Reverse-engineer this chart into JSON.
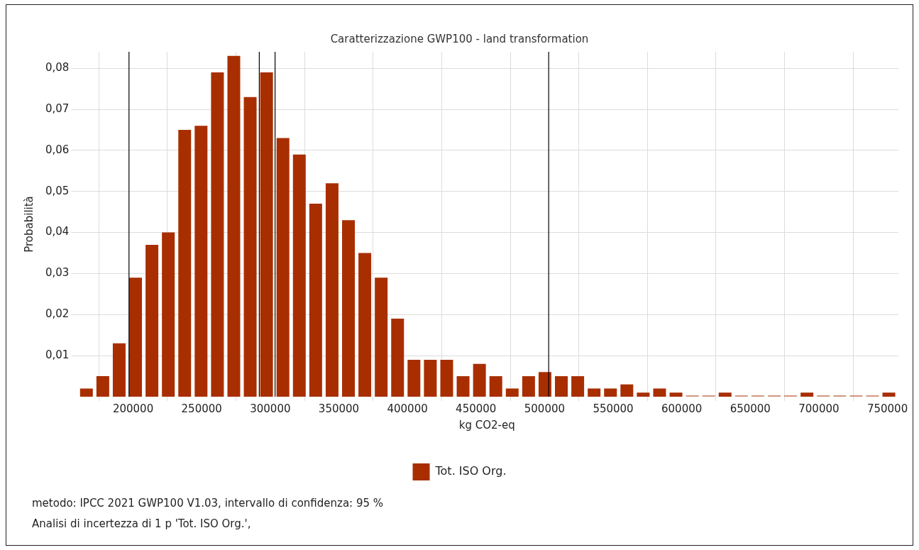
{
  "chart_data": {
    "type": "histogram",
    "title": "Caratterizzazione GWP100 - land transformation",
    "xlabel": "kg CO2-eq",
    "ylabel": "Probabilità",
    "bins": [
      160000,
      171940,
      183880,
      195820,
      207760,
      219700,
      231640,
      243580,
      255520,
      267460,
      279400,
      291340,
      303280,
      315220,
      327160,
      339100,
      351040,
      362980,
      374920,
      386860,
      398800,
      410740,
      422680,
      434620,
      446560,
      458500,
      470440,
      482380,
      494320,
      506260,
      518200,
      530140,
      542080,
      554020,
      565960,
      577900,
      589840,
      601780,
      613720,
      625660,
      637600,
      649540,
      661480,
      673420,
      685360,
      697300,
      709240,
      721180,
      733120,
      745060,
      757000
    ],
    "series": [
      {
        "name": "Tot. ISO Org.",
        "color": "#a82e00",
        "values": [
          0.002,
          0.005,
          0.013,
          0.029,
          0.037,
          0.04,
          0.065,
          0.066,
          0.079,
          0.083,
          0.073,
          0.079,
          0.063,
          0.059,
          0.047,
          0.052,
          0.043,
          0.035,
          0.029,
          0.019,
          0.009,
          0.009,
          0.009,
          0.005,
          0.008,
          0.005,
          0.002,
          0.005,
          0.006,
          0.005,
          0.005,
          0.002,
          0.002,
          0.003,
          0.001,
          0.002,
          0.001,
          0,
          0,
          0.001,
          0,
          0,
          0,
          0,
          0.001,
          0,
          0,
          0,
          0,
          0.001
        ]
      }
    ],
    "xlim": [
      158000,
      758000
    ],
    "xticks": [
      200000,
      250000,
      300000,
      350000,
      400000,
      450000,
      500000,
      550000,
      600000,
      650000,
      700000,
      750000
    ],
    "ylim": [
      0,
      0.084
    ],
    "yticks": [
      {
        "value": 0.01,
        "label": "0,01"
      },
      {
        "value": 0.02,
        "label": "0,02"
      },
      {
        "value": 0.03,
        "label": "0,03"
      },
      {
        "value": 0.04,
        "label": "0,04"
      },
      {
        "value": 0.05,
        "label": "0,05"
      },
      {
        "value": 0.06,
        "label": "0,06"
      },
      {
        "value": 0.07,
        "label": "0,07"
      },
      {
        "value": 0.08,
        "label": "0,08"
      }
    ],
    "ref_lines": [
      {
        "axis": "x",
        "value": 197000,
        "label": null,
        "color": "#000000"
      },
      {
        "axis": "x",
        "value": 292000,
        "label": null,
        "color": "#000000"
      },
      {
        "axis": "x",
        "value": 303500,
        "label": null,
        "color": "#000000"
      },
      {
        "axis": "x",
        "value": 503000,
        "label": null,
        "color": "#000000"
      }
    ],
    "grid": true,
    "legend": "bottom",
    "annotations": [
      "metodo: IPCC 2021 GWP100 V1.03, intervallo di confidenza: 95 %",
      "Analisi di incertezza di 1 p 'Tot. ISO Org.',"
    ]
  }
}
